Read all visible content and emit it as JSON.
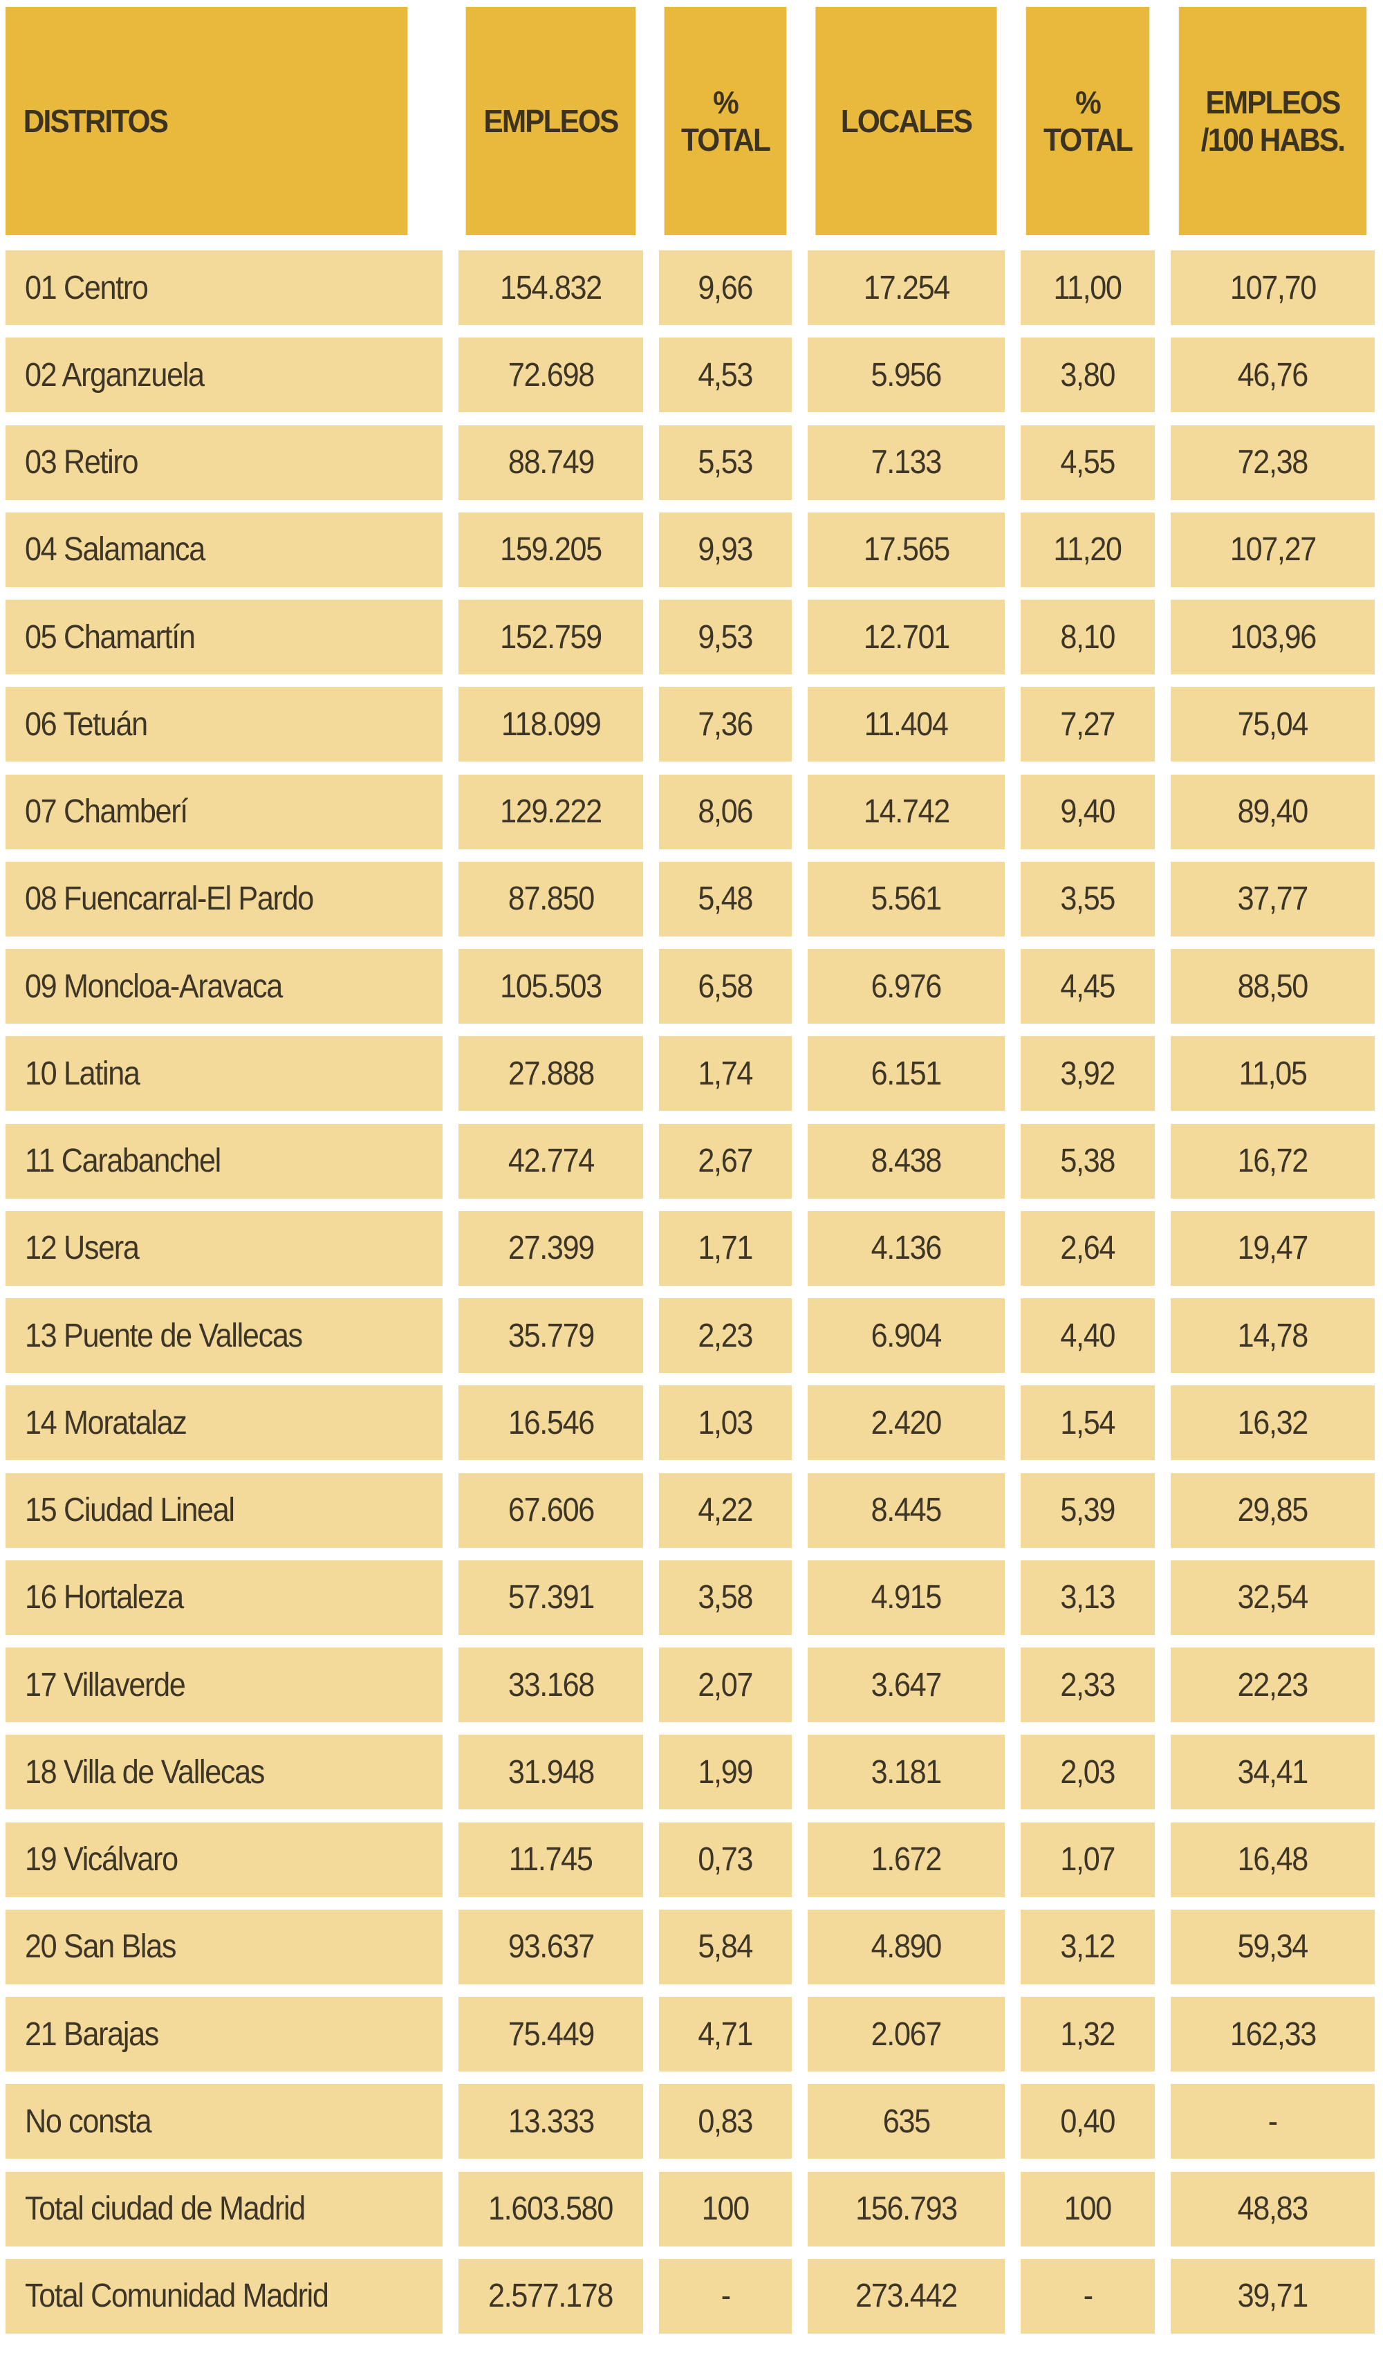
{
  "colors": {
    "header_bg": "#e8b93c",
    "cell_bg": "#f3d99a",
    "text": "#3d3526"
  },
  "table": {
    "headers": [
      "DISTRITOS",
      "EMPLEOS",
      "%\nTOTAL",
      "LOCALES",
      "%\nTOTAL",
      "EMPLEOS\n/100 HABS."
    ],
    "rows": [
      [
        "01 Centro",
        "154.832",
        "9,66",
        "17.254",
        "11,00",
        "107,70"
      ],
      [
        "02 Arganzuela",
        "72.698",
        "4,53",
        "5.956",
        "3,80",
        "46,76"
      ],
      [
        "03 Retiro",
        "88.749",
        "5,53",
        "7.133",
        "4,55",
        "72,38"
      ],
      [
        "04 Salamanca",
        "159.205",
        "9,93",
        "17.565",
        "11,20",
        "107,27"
      ],
      [
        "05 Chamartín",
        "152.759",
        "9,53",
        "12.701",
        "8,10",
        "103,96"
      ],
      [
        "06 Tetuán",
        "118.099",
        "7,36",
        "11.404",
        "7,27",
        "75,04"
      ],
      [
        "07 Chamberí",
        "129.222",
        "8,06",
        "14.742",
        "9,40",
        "89,40"
      ],
      [
        "08 Fuencarral-El Pardo",
        "87.850",
        "5,48",
        "5.561",
        "3,55",
        "37,77"
      ],
      [
        "09 Moncloa-Aravaca",
        "105.503",
        "6,58",
        "6.976",
        "4,45",
        "88,50"
      ],
      [
        "10 Latina",
        "27.888",
        "1,74",
        "6.151",
        "3,92",
        "11,05"
      ],
      [
        "11 Carabanchel",
        "42.774",
        "2,67",
        "8.438",
        "5,38",
        "16,72"
      ],
      [
        "12 Usera",
        "27.399",
        "1,71",
        "4.136",
        "2,64",
        "19,47"
      ],
      [
        "13 Puente de Vallecas",
        "35.779",
        "2,23",
        "6.904",
        "4,40",
        "14,78"
      ],
      [
        "14 Moratalaz",
        "16.546",
        "1,03",
        "2.420",
        "1,54",
        "16,32"
      ],
      [
        "15 Ciudad Lineal",
        "67.606",
        "4,22",
        "8.445",
        "5,39",
        "29,85"
      ],
      [
        "16 Hortaleza",
        "57.391",
        "3,58",
        "4.915",
        "3,13",
        "32,54"
      ],
      [
        "17 Villaverde",
        "33.168",
        "2,07",
        "3.647",
        "2,33",
        "22,23"
      ],
      [
        "18 Villa de Vallecas",
        "31.948",
        "1,99",
        "3.181",
        "2,03",
        "34,41"
      ],
      [
        "19 Vicálvaro",
        "11.745",
        "0,73",
        "1.672",
        "1,07",
        "16,48"
      ],
      [
        "20 San Blas",
        "93.637",
        "5,84",
        "4.890",
        "3,12",
        "59,34"
      ],
      [
        "21 Barajas",
        "75.449",
        "4,71",
        "2.067",
        "1,32",
        "162,33"
      ],
      [
        "No consta",
        "13.333",
        "0,83",
        "635",
        "0,40",
        "-"
      ],
      [
        "Total ciudad de Madrid",
        "1.603.580",
        "100",
        "156.793",
        "100",
        "48,83"
      ],
      [
        "Total Comunidad Madrid",
        "2.577.178",
        "-",
        "273.442",
        "-",
        "39,71"
      ]
    ]
  }
}
